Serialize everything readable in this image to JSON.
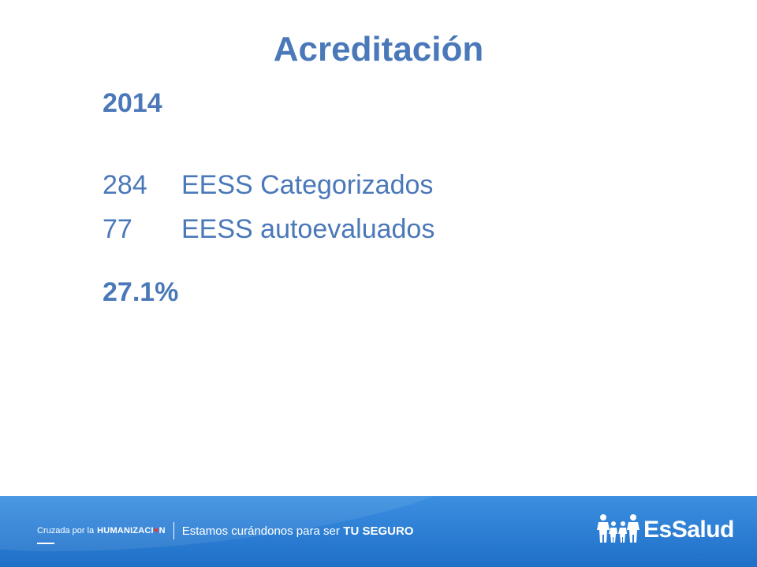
{
  "slide": {
    "title": "Acreditación",
    "year": "2014",
    "rows": [
      {
        "number": "284",
        "label": "EESS Categorizados"
      },
      {
        "number": "77",
        "label": "EESS autoevaluados"
      }
    ],
    "percent": "27.1%"
  },
  "footer": {
    "crusade": "Cruzada por la",
    "humanizacion_prefix": "HUMANIZACI",
    "humanizacion_o": "♥",
    "humanizacion_suffix": "N",
    "slogan": "Estamos curándonos para ser",
    "slogan_strong": "TU SEGURO",
    "logo_text": "EsSalud"
  },
  "colors": {
    "text_blue": "#4a78b8",
    "footer_blue": "#1f6fc8",
    "heart_red": "#e03a3a"
  }
}
